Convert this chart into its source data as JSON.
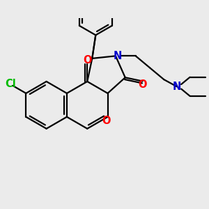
{
  "bg_color": "#ebebeb",
  "bond_color": "#000000",
  "o_color": "#ff0000",
  "n_color": "#0000cc",
  "cl_color": "#00bb00",
  "lw": 1.6,
  "fs": 10.5,
  "xlim": [
    -3.0,
    4.2
  ],
  "ylim": [
    -2.8,
    3.2
  ]
}
